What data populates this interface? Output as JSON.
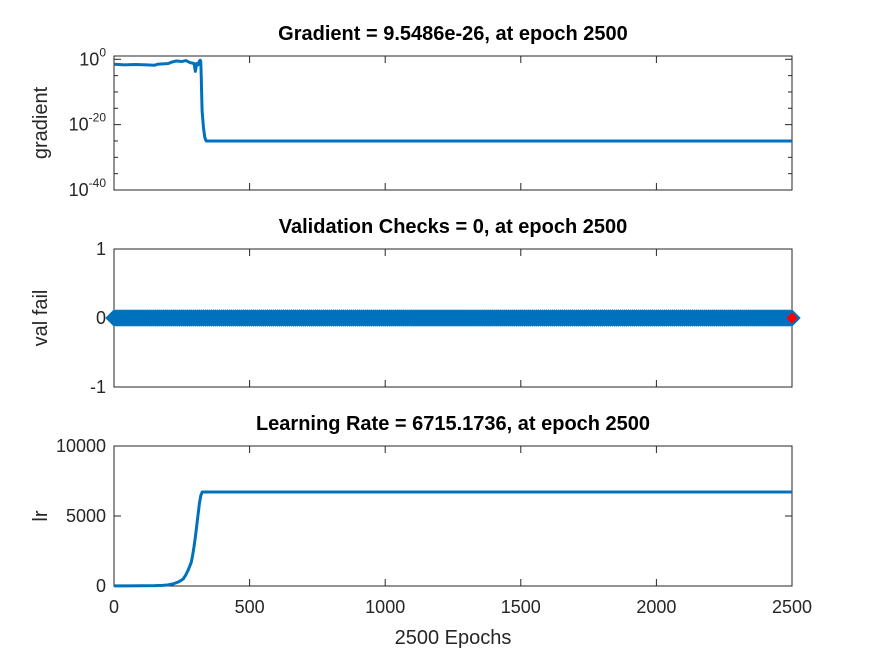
{
  "chart_data": [
    {
      "type": "line",
      "title": "Gradient = 9.5486e-26, at epoch 2500",
      "ylabel": "gradient",
      "yscale": "log",
      "ylim": [
        1e-40,
        10
      ],
      "ytick_labels": [
        {
          "base": "10",
          "exp": "0"
        },
        {
          "base": "10",
          "exp": "-20"
        },
        {
          "base": "10",
          "exp": "-40"
        }
      ],
      "xlim": [
        0,
        2500
      ],
      "color": "#0072BD",
      "series": [
        {
          "x": [
            0,
            40,
            80,
            120,
            150,
            160,
            200,
            215,
            230,
            250,
            265,
            280,
            295,
            300,
            305,
            310,
            315,
            318,
            320,
            322,
            323,
            325,
            330,
            335,
            340,
            400,
            800,
            1200,
            1600,
            2000,
            2500
          ],
          "y": [
            0.03,
            0.02,
            0.025,
            0.02,
            0.015,
            0.03,
            0.05,
            0.15,
            0.3,
            0.2,
            0.4,
            0.1,
            0.05,
            0.0002,
            0.05,
            0.02,
            0.3,
            0.5,
            0.2,
            1e-06,
            1e-10,
            1e-16,
            1e-21,
            1e-24,
            9.5486e-26,
            9.5486e-26,
            9.5486e-26,
            9.5486e-26,
            9.5486e-26,
            9.5486e-26,
            9.5486e-26
          ]
        }
      ]
    },
    {
      "type": "line",
      "title": "Validation Checks = 0, at epoch 2500",
      "ylabel": "val fail",
      "ylim": [
        -1,
        1
      ],
      "yticks": [
        1,
        0,
        -1
      ],
      "ytick_labels": [
        "1",
        "0",
        "-1"
      ],
      "xlim": [
        0,
        2500
      ],
      "color": "#0072BD",
      "marker": "diamond",
      "series": [
        {
          "x": [
            0,
            2500
          ],
          "y": [
            0,
            0
          ]
        }
      ],
      "highlight_point": {
        "x": 2500,
        "y": 0,
        "color": "#FF0000"
      }
    },
    {
      "type": "line",
      "title": "Learning Rate = 6715.1736, at epoch 2500",
      "ylabel": "lr",
      "xlabel": "2500 Epochs",
      "ylim": [
        0,
        10000
      ],
      "yticks": [
        10000,
        5000,
        0
      ],
      "ytick_labels": [
        "10000",
        "5000",
        "0"
      ],
      "xlim": [
        0,
        2500
      ],
      "xticks": [
        0,
        500,
        1000,
        1500,
        2000,
        2500
      ],
      "xtick_labels": [
        "0",
        "500",
        "1000",
        "1500",
        "2000",
        "2500"
      ],
      "color": "#0072BD",
      "series": [
        {
          "x": [
            0,
            50,
            100,
            150,
            180,
            200,
            220,
            240,
            255,
            265,
            275,
            285,
            290,
            295,
            300,
            305,
            310,
            315,
            320,
            325,
            330,
            2500
          ],
          "y": [
            10,
            12,
            15,
            25,
            45,
            80,
            160,
            310,
            500,
            800,
            1200,
            1700,
            2200,
            2800,
            3500,
            4300,
            5100,
            5900,
            6450,
            6715.1736,
            6715.1736,
            6715.1736
          ]
        }
      ]
    }
  ]
}
